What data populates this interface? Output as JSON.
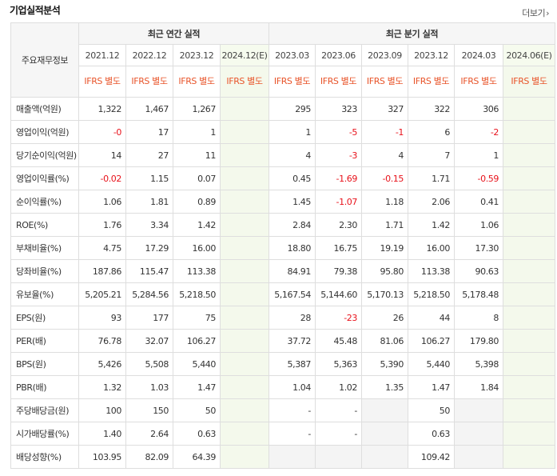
{
  "header": {
    "title": "기업실적분석",
    "more_label": "더보기"
  },
  "table": {
    "item_header": "주요재무정보",
    "annual_header": "최근 연간 실적",
    "quarter_header": "최근 분기 실적",
    "annual_periods": [
      "2021.12",
      "2022.12",
      "2023.12",
      "2024.12(E)"
    ],
    "quarter_periods": [
      "2023.03",
      "2023.06",
      "2023.09",
      "2023.12",
      "2024.03",
      "2024.06(E)"
    ],
    "basis": [
      "IFRS 별도",
      "IFRS 별도",
      "IFRS 별도",
      "IFRS 별도",
      "IFRS 별도",
      "IFRS 별도",
      "IFRS 별도",
      "IFRS 별도",
      "IFRS 별도",
      "IFRS 별도"
    ],
    "rows": [
      {
        "label": "매출액(억원)",
        "values": [
          "1,322",
          "1,467",
          "1,267",
          "",
          "295",
          "323",
          "327",
          "322",
          "306",
          ""
        ]
      },
      {
        "label": "영업이익(억원)",
        "values": [
          "-0",
          "17",
          "1",
          "",
          "1",
          "-5",
          "-1",
          "6",
          "-2",
          ""
        ]
      },
      {
        "label": "당기순이익(억원)",
        "values": [
          "14",
          "27",
          "11",
          "",
          "4",
          "-3",
          "4",
          "7",
          "1",
          ""
        ]
      },
      {
        "label": "영업이익률(%)",
        "values": [
          "-0.02",
          "1.15",
          "0.07",
          "",
          "0.45",
          "-1.69",
          "-0.15",
          "1.71",
          "-0.59",
          ""
        ]
      },
      {
        "label": "순이익률(%)",
        "values": [
          "1.06",
          "1.81",
          "0.89",
          "",
          "1.45",
          "-1.07",
          "1.18",
          "2.06",
          "0.41",
          ""
        ]
      },
      {
        "label": "ROE(%)",
        "values": [
          "1.76",
          "3.34",
          "1.42",
          "",
          "2.84",
          "2.30",
          "1.71",
          "1.42",
          "1.06",
          ""
        ]
      },
      {
        "label": "부채비율(%)",
        "values": [
          "4.75",
          "17.29",
          "16.00",
          "",
          "18.80",
          "16.75",
          "19.19",
          "16.00",
          "17.30",
          ""
        ]
      },
      {
        "label": "당좌비율(%)",
        "values": [
          "187.86",
          "115.47",
          "113.38",
          "",
          "84.91",
          "79.38",
          "95.80",
          "113.38",
          "90.63",
          ""
        ]
      },
      {
        "label": "유보율(%)",
        "values": [
          "5,205.21",
          "5,284.56",
          "5,218.50",
          "",
          "5,167.54",
          "5,144.60",
          "5,170.13",
          "5,218.50",
          "5,178.48",
          ""
        ]
      },
      {
        "label": "EPS(원)",
        "values": [
          "93",
          "177",
          "75",
          "",
          "28",
          "-23",
          "26",
          "44",
          "8",
          ""
        ]
      },
      {
        "label": "PER(배)",
        "values": [
          "76.78",
          "32.07",
          "106.27",
          "",
          "37.72",
          "45.48",
          "81.06",
          "106.27",
          "179.80",
          ""
        ]
      },
      {
        "label": "BPS(원)",
        "values": [
          "5,426",
          "5,508",
          "5,440",
          "",
          "5,387",
          "5,363",
          "5,390",
          "5,440",
          "5,398",
          ""
        ]
      },
      {
        "label": "PBR(배)",
        "values": [
          "1.32",
          "1.03",
          "1.47",
          "",
          "1.04",
          "1.02",
          "1.35",
          "1.47",
          "1.84",
          ""
        ]
      },
      {
        "label": "주당배당금(원)",
        "values": [
          "100",
          "150",
          "50",
          "",
          "-",
          "-",
          "",
          "50",
          "",
          ""
        ]
      },
      {
        "label": "시가배당률(%)",
        "values": [
          "1.40",
          "2.64",
          "0.63",
          "",
          "-",
          "-",
          "",
          "0.63",
          "",
          ""
        ]
      },
      {
        "label": "배당성향(%)",
        "values": [
          "103.95",
          "82.09",
          "64.39",
          "",
          "",
          "",
          "",
          "109.42",
          "",
          ""
        ]
      }
    ]
  }
}
